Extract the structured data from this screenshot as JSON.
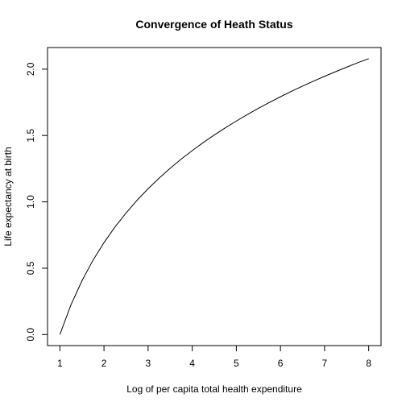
{
  "chart_data": {
    "type": "line",
    "title": "Convergence of Heath Status",
    "xlabel": "Log of per capita total health expenditure",
    "ylabel": "Life expectancy at birth",
    "xlim": [
      0.72,
      8.28
    ],
    "ylim": [
      -0.083,
      2.163
    ],
    "x_ticks": [
      1,
      2,
      3,
      4,
      5,
      6,
      7,
      8
    ],
    "y_ticks": [
      0.0,
      0.5,
      1.0,
      1.5,
      2.0
    ],
    "x_tick_labels": [
      "1",
      "2",
      "3",
      "4",
      "5",
      "6",
      "7",
      "8"
    ],
    "y_tick_labels": [
      "0.0",
      "0.5",
      "1.0",
      "1.5",
      "2.0"
    ],
    "grid": false,
    "series": [
      {
        "x": [
          1.0,
          1.25,
          1.5,
          1.75,
          2.0,
          2.25,
          2.5,
          2.75,
          3.0,
          3.25,
          3.5,
          3.75,
          4.0,
          4.25,
          4.5,
          4.75,
          5.0,
          5.25,
          5.5,
          5.75,
          6.0,
          6.25,
          6.5,
          6.75,
          7.0,
          7.25,
          7.5,
          7.75,
          8.0
        ],
        "y": [
          0.0,
          0.223,
          0.405,
          0.56,
          0.693,
          0.811,
          0.916,
          1.012,
          1.099,
          1.179,
          1.253,
          1.322,
          1.386,
          1.447,
          1.504,
          1.558,
          1.609,
          1.658,
          1.705,
          1.749,
          1.792,
          1.833,
          1.872,
          1.91,
          1.946,
          1.981,
          2.015,
          2.048,
          2.079
        ]
      }
    ]
  }
}
